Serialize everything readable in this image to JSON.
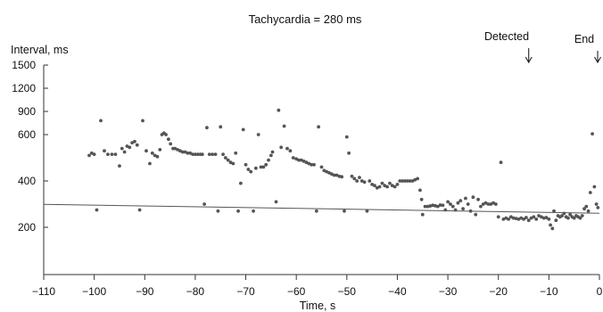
{
  "chart_data": {
    "type": "scatter",
    "title": "Tachycardia = 280 ms",
    "xlabel": "Time, s",
    "ylabel": "Interval, ms",
    "xlim": [
      -110,
      0
    ],
    "ylim": [
      0,
      1500
    ],
    "x_ticks": [
      -110,
      -100,
      -90,
      -80,
      -70,
      -60,
      -50,
      -40,
      -30,
      -20,
      -10,
      0
    ],
    "x_tick_labels": [
      "−110",
      "−100",
      "−90",
      "−80",
      "−70",
      "−60",
      "−50",
      "−40",
      "−30",
      "−20",
      "−10",
      "0"
    ],
    "y_ticks": [
      200,
      400,
      600,
      900,
      1200,
      1500
    ],
    "y_tick_labels": [
      "200",
      "400",
      "600",
      "900",
      "1200",
      "1500"
    ],
    "reference_line": {
      "interval_ms": 280
    },
    "annotations": [
      {
        "label": "Detected",
        "x": -14
      },
      {
        "label": "End",
        "x": 0
      }
    ],
    "grid": false,
    "legend": "none",
    "point_color": "#555555",
    "series": [
      {
        "points": [
          [
            -101,
            510
          ],
          [
            -100.5,
            520
          ],
          [
            -100,
            515
          ],
          [
            -99.5,
            275
          ],
          [
            -98.7,
            780
          ],
          [
            -98,
            530
          ],
          [
            -97.3,
            515
          ],
          [
            -96.5,
            515
          ],
          [
            -95.8,
            515
          ],
          [
            -95,
            465
          ],
          [
            -94.5,
            540
          ],
          [
            -94,
            525
          ],
          [
            -93.5,
            550
          ],
          [
            -93,
            545
          ],
          [
            -92.5,
            565
          ],
          [
            -92,
            570
          ],
          [
            -91.5,
            555
          ],
          [
            -91,
            275
          ],
          [
            -90.4,
            780
          ],
          [
            -89.7,
            530
          ],
          [
            -89,
            475
          ],
          [
            -88.5,
            520
          ],
          [
            -88,
            510
          ],
          [
            -87.5,
            505
          ],
          [
            -87,
            535
          ],
          [
            -86.6,
            600
          ],
          [
            -86.2,
            620
          ],
          [
            -85.8,
            600
          ],
          [
            -85.3,
            580
          ],
          [
            -84.9,
            560
          ],
          [
            -84.4,
            540
          ],
          [
            -84,
            540
          ],
          [
            -83.5,
            535
          ],
          [
            -83,
            530
          ],
          [
            -82.5,
            525
          ],
          [
            -82,
            525
          ],
          [
            -81.5,
            520
          ],
          [
            -81,
            520
          ],
          [
            -80.5,
            515
          ],
          [
            -80,
            515
          ],
          [
            -79.5,
            515
          ],
          [
            -79,
            515
          ],
          [
            -78.6,
            515
          ],
          [
            -78.2,
            300
          ],
          [
            -77.7,
            690
          ],
          [
            -77.2,
            515
          ],
          [
            -76.6,
            515
          ],
          [
            -76,
            515
          ],
          [
            -75.5,
            270
          ],
          [
            -75,
            700
          ],
          [
            -74.5,
            515
          ],
          [
            -74,
            500
          ],
          [
            -73.5,
            490
          ],
          [
            -73,
            480
          ],
          [
            -72.5,
            475
          ],
          [
            -72,
            520
          ],
          [
            -71.5,
            270
          ],
          [
            -71,
            390
          ],
          [
            -70.5,
            665
          ],
          [
            -70,
            470
          ],
          [
            -69.5,
            450
          ],
          [
            -69,
            440
          ],
          [
            -68.5,
            270
          ],
          [
            -68,
            455
          ],
          [
            -67.5,
            600
          ],
          [
            -67,
            460
          ],
          [
            -66.5,
            460
          ],
          [
            -66,
            470
          ],
          [
            -65.5,
            490
          ],
          [
            -65,
            510
          ],
          [
            -64.7,
            525
          ],
          [
            -64,
            310
          ],
          [
            -63.5,
            915
          ],
          [
            -63,
            545
          ],
          [
            -62.4,
            710
          ],
          [
            -61.8,
            540
          ],
          [
            -61.2,
            530
          ],
          [
            -60.6,
            500
          ],
          [
            -60,
            495
          ],
          [
            -59.5,
            490
          ],
          [
            -59,
            490
          ],
          [
            -58.5,
            485
          ],
          [
            -58,
            480
          ],
          [
            -57.5,
            475
          ],
          [
            -57,
            470
          ],
          [
            -56.5,
            470
          ],
          [
            -56,
            270
          ],
          [
            -55.6,
            700
          ],
          [
            -55,
            460
          ],
          [
            -54.5,
            445
          ],
          [
            -54,
            440
          ],
          [
            -53.5,
            435
          ],
          [
            -53,
            430
          ],
          [
            -52.5,
            425
          ],
          [
            -52,
            425
          ],
          [
            -51.5,
            420
          ],
          [
            -51,
            418
          ],
          [
            -50.5,
            270
          ],
          [
            -50,
            590
          ],
          [
            -49.6,
            520
          ],
          [
            -49,
            420
          ],
          [
            -48.5,
            410
          ],
          [
            -48,
            400
          ],
          [
            -47.5,
            415
          ],
          [
            -47,
            400
          ],
          [
            -46.5,
            395
          ],
          [
            -46,
            270
          ],
          [
            -45.5,
            400
          ],
          [
            -45,
            385
          ],
          [
            -44.5,
            380
          ],
          [
            -44,
            370
          ],
          [
            -43.5,
            375
          ],
          [
            -43,
            390
          ],
          [
            -42.5,
            380
          ],
          [
            -42,
            375
          ],
          [
            -41.5,
            390
          ],
          [
            -41,
            380
          ],
          [
            -40.5,
            375
          ],
          [
            -40,
            385
          ],
          [
            -39.5,
            400
          ],
          [
            -39,
            400
          ],
          [
            -38.5,
            400
          ],
          [
            -38,
            400
          ],
          [
            -37.5,
            400
          ],
          [
            -37,
            400
          ],
          [
            -36.5,
            405
          ],
          [
            -36,
            410
          ],
          [
            -35.5,
            360
          ],
          [
            -35.2,
            320
          ],
          [
            -35,
            255
          ],
          [
            -34.5,
            290
          ],
          [
            -34,
            290
          ],
          [
            -33.5,
            292
          ],
          [
            -33,
            295
          ],
          [
            -32.5,
            293
          ],
          [
            -32,
            290
          ],
          [
            -31.5,
            296
          ],
          [
            -31,
            295
          ],
          [
            -30.5,
            275
          ],
          [
            -30,
            310
          ],
          [
            -29.5,
            300
          ],
          [
            -29,
            290
          ],
          [
            -28.5,
            275
          ],
          [
            -28,
            305
          ],
          [
            -27.5,
            315
          ],
          [
            -27,
            280
          ],
          [
            -26.5,
            325
          ],
          [
            -26,
            300
          ],
          [
            -25.5,
            270
          ],
          [
            -25,
            330
          ],
          [
            -24.5,
            255
          ],
          [
            -24,
            320
          ],
          [
            -23.5,
            290
          ],
          [
            -23,
            300
          ],
          [
            -22.5,
            305
          ],
          [
            -22,
            300
          ],
          [
            -21.5,
            300
          ],
          [
            -21,
            305
          ],
          [
            -20.5,
            300
          ],
          [
            -20,
            245
          ],
          [
            -19.5,
            480
          ],
          [
            -19,
            235
          ],
          [
            -18.5,
            240
          ],
          [
            -18,
            235
          ],
          [
            -17.5,
            245
          ],
          [
            -17,
            240
          ],
          [
            -16.5,
            238
          ],
          [
            -16,
            235
          ],
          [
            -15.5,
            240
          ],
          [
            -15,
            235
          ],
          [
            -14.5,
            242
          ],
          [
            -14,
            230
          ],
          [
            -13.5,
            240
          ],
          [
            -13,
            245
          ],
          [
            -12.5,
            235
          ],
          [
            -12,
            250
          ],
          [
            -11.5,
            245
          ],
          [
            -11,
            240
          ],
          [
            -10.5,
            242
          ],
          [
            -10,
            235
          ],
          [
            -9.7,
            210
          ],
          [
            -9.3,
            195
          ],
          [
            -9,
            270
          ],
          [
            -8.6,
            230
          ],
          [
            -8.2,
            250
          ],
          [
            -7.8,
            245
          ],
          [
            -7.4,
            250
          ],
          [
            -7,
            260
          ],
          [
            -6.6,
            245
          ],
          [
            -6.2,
            240
          ],
          [
            -5.8,
            255
          ],
          [
            -5.4,
            245
          ],
          [
            -5,
            240
          ],
          [
            -4.6,
            250
          ],
          [
            -4.2,
            245
          ],
          [
            -3.8,
            240
          ],
          [
            -3.4,
            250
          ],
          [
            -3,
            280
          ],
          [
            -2.6,
            290
          ],
          [
            -2.2,
            270
          ],
          [
            -1.8,
            350
          ],
          [
            -1.4,
            610
          ],
          [
            -1,
            375
          ],
          [
            -0.6,
            300
          ],
          [
            -0.3,
            285
          ]
        ]
      }
    ]
  }
}
